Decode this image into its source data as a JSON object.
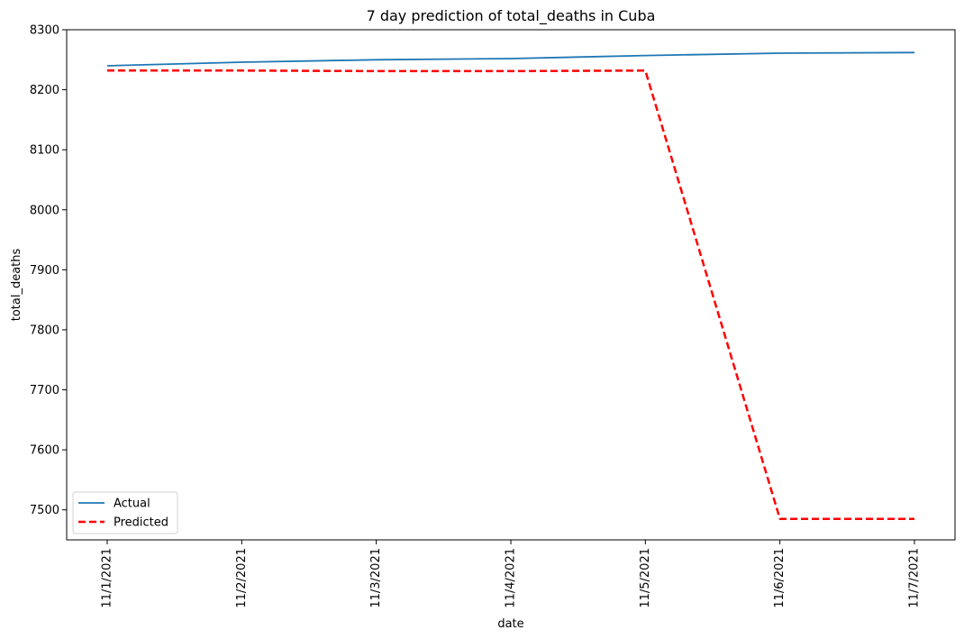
{
  "chart_data": {
    "type": "line",
    "title": "7 day prediction of total_deaths in Cuba",
    "xlabel": "date",
    "ylabel": "total_deaths",
    "categories": [
      "11/1/2021",
      "11/2/2021",
      "11/3/2021",
      "11/4/2021",
      "11/5/2021",
      "11/6/2021",
      "11/7/2021"
    ],
    "ylim": [
      7450,
      8300
    ],
    "yticks": [
      7500,
      7600,
      7700,
      7800,
      7900,
      8000,
      8100,
      8200,
      8300
    ],
    "grid": false,
    "legend_position": "lower-left",
    "series": [
      {
        "name": "Actual",
        "values": [
          8240,
          8246,
          8250,
          8252,
          8257,
          8261,
          8262
        ],
        "color": "#1f77b4",
        "style": "solid"
      },
      {
        "name": "Predicted",
        "values": [
          8232,
          8232,
          8231,
          8231,
          8232,
          7485,
          7485
        ],
        "color": "#ff0000",
        "style": "dashed"
      }
    ]
  }
}
